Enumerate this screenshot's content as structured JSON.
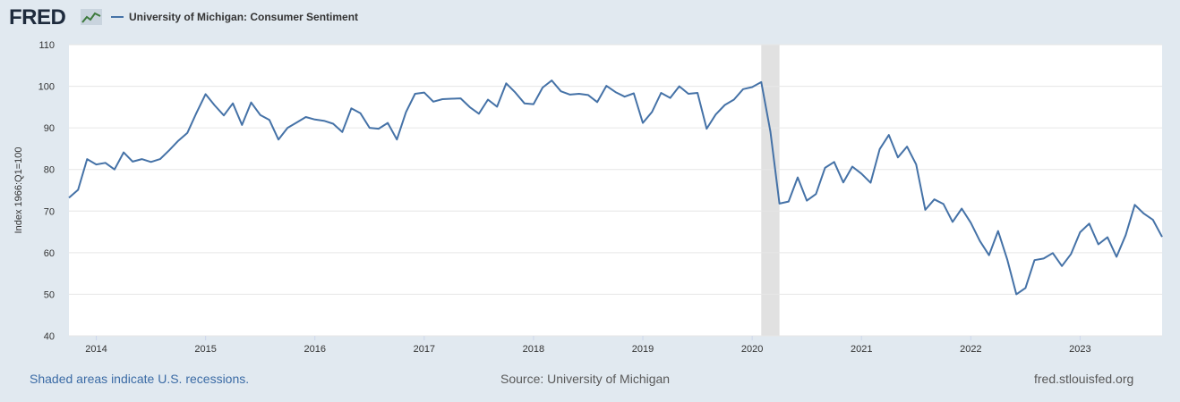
{
  "header": {
    "logo_text": "FRED",
    "logo_icon": "line-chart-icon",
    "series_label": "University of Michigan: Consumer Sentiment",
    "series_color": "#4572a7"
  },
  "footer": {
    "recession_note": "Shaded areas indicate U.S. recessions.",
    "source": "Source: University of Michigan",
    "site": "fred.stlouisfed.org"
  },
  "chart_data": {
    "type": "line",
    "ylabel": "Index 1966:Q1=100",
    "ylim": [
      40,
      110
    ],
    "yticks": [
      40,
      50,
      60,
      70,
      80,
      90,
      100,
      110
    ],
    "xlim": [
      "2013-10",
      "2023-10"
    ],
    "xticks": [
      "2014",
      "2015",
      "2016",
      "2017",
      "2018",
      "2019",
      "2020",
      "2021",
      "2022",
      "2023"
    ],
    "grid": true,
    "recession_shading": [
      [
        "2020-02",
        "2020-04"
      ]
    ],
    "recession_color": "#e1e1e1",
    "series": [
      {
        "name": "University of Michigan: Consumer Sentiment",
        "color": "#4572a7",
        "x": [
          "2013-10",
          "2013-11",
          "2013-12",
          "2014-01",
          "2014-02",
          "2014-03",
          "2014-04",
          "2014-05",
          "2014-06",
          "2014-07",
          "2014-08",
          "2014-09",
          "2014-10",
          "2014-11",
          "2014-12",
          "2015-01",
          "2015-02",
          "2015-03",
          "2015-04",
          "2015-05",
          "2015-06",
          "2015-07",
          "2015-08",
          "2015-09",
          "2015-10",
          "2015-11",
          "2015-12",
          "2016-01",
          "2016-02",
          "2016-03",
          "2016-04",
          "2016-05",
          "2016-06",
          "2016-07",
          "2016-08",
          "2016-09",
          "2016-10",
          "2016-11",
          "2016-12",
          "2017-01",
          "2017-02",
          "2017-03",
          "2017-04",
          "2017-05",
          "2017-06",
          "2017-07",
          "2017-08",
          "2017-09",
          "2017-10",
          "2017-11",
          "2017-12",
          "2018-01",
          "2018-02",
          "2018-03",
          "2018-04",
          "2018-05",
          "2018-06",
          "2018-07",
          "2018-08",
          "2018-09",
          "2018-10",
          "2018-11",
          "2018-12",
          "2019-01",
          "2019-02",
          "2019-03",
          "2019-04",
          "2019-05",
          "2019-06",
          "2019-07",
          "2019-08",
          "2019-09",
          "2019-10",
          "2019-11",
          "2019-12",
          "2020-01",
          "2020-02",
          "2020-03",
          "2020-04",
          "2020-05",
          "2020-06",
          "2020-07",
          "2020-08",
          "2020-09",
          "2020-10",
          "2020-11",
          "2020-12",
          "2021-01",
          "2021-02",
          "2021-03",
          "2021-04",
          "2021-05",
          "2021-06",
          "2021-07",
          "2021-08",
          "2021-09",
          "2021-10",
          "2021-11",
          "2021-12",
          "2022-01",
          "2022-02",
          "2022-03",
          "2022-04",
          "2022-05",
          "2022-06",
          "2022-07",
          "2022-08",
          "2022-09",
          "2022-10",
          "2022-11",
          "2022-12",
          "2023-01",
          "2023-02",
          "2023-03",
          "2023-04",
          "2023-05",
          "2023-06",
          "2023-07",
          "2023-08",
          "2023-09",
          "2023-10"
        ],
        "values": [
          73.2,
          75.1,
          82.5,
          81.2,
          81.6,
          80.0,
          84.1,
          81.9,
          82.5,
          81.8,
          82.5,
          84.6,
          86.9,
          88.8,
          93.6,
          98.1,
          95.4,
          93.0,
          95.9,
          90.7,
          96.1,
          93.1,
          91.9,
          87.2,
          90.0,
          91.3,
          92.6,
          92.0,
          91.7,
          91.0,
          89.0,
          94.7,
          93.5,
          90.0,
          89.8,
          91.2,
          87.2,
          93.8,
          98.2,
          98.5,
          96.3,
          96.9,
          97.0,
          97.1,
          95.0,
          93.4,
          96.8,
          95.1,
          100.7,
          98.5,
          95.9,
          95.7,
          99.7,
          101.4,
          98.8,
          98.0,
          98.2,
          97.9,
          96.2,
          100.1,
          98.6,
          97.5,
          98.3,
          91.2,
          93.8,
          98.4,
          97.2,
          100.0,
          98.2,
          98.4,
          89.8,
          93.2,
          95.5,
          96.8,
          99.3,
          99.8,
          101.0,
          89.1,
          71.8,
          72.3,
          78.1,
          72.5,
          74.1,
          80.4,
          81.8,
          76.9,
          80.7,
          79.0,
          76.8,
          84.9,
          88.3,
          82.9,
          85.5,
          81.2,
          70.3,
          72.8,
          71.7,
          67.4,
          70.6,
          67.2,
          62.8,
          59.4,
          65.2,
          58.4,
          50.0,
          51.5,
          58.2,
          58.6,
          59.9,
          56.8,
          59.7,
          64.9,
          67.0,
          62.0,
          63.7,
          59.0,
          64.2,
          71.5,
          69.4,
          67.9,
          63.8
        ]
      }
    ]
  }
}
